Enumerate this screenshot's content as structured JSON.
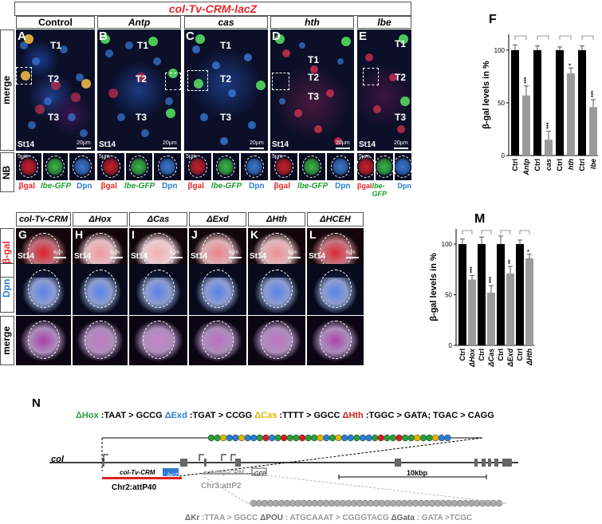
{
  "top": {
    "title": "col-Tv-CRM-lacZ",
    "columns": [
      "Control",
      "Antp",
      "cas",
      "hth",
      "lbe"
    ],
    "panel_letters": [
      "A",
      "B",
      "C",
      "D",
      "E"
    ],
    "row_label_merge": "merge",
    "row_label_nb": "NB",
    "segments": [
      "T1",
      "T2",
      "T3"
    ],
    "stage": "St14",
    "scale_20": "20µm",
    "scale_5": "5µm",
    "nb_labels": {
      "bgal": "βgal",
      "lbe": "lbe-GFP",
      "dpn": "Dpn"
    }
  },
  "bottom": {
    "columns": [
      "col-Tv-CRM",
      "ΔHox",
      "ΔCas",
      "ΔExd",
      "ΔHth",
      "ΔHCEH"
    ],
    "panel_letters": [
      "G",
      "H",
      "I",
      "J",
      "K",
      "L"
    ],
    "row_labels": [
      "β-gal",
      "Dpn",
      "merge"
    ],
    "stage": "St14",
    "scale_6": "6µm"
  },
  "chart_F": {
    "letter": "F",
    "chart_data": {
      "type": "bar",
      "categories": [
        "Ctrl",
        "Antp",
        "Ctrl",
        "cas",
        "Ctrl",
        "hth",
        "Ctrl",
        "lbe"
      ],
      "values": [
        100,
        57,
        100,
        15,
        100,
        78,
        100,
        46
      ],
      "errors": [
        5,
        9,
        4,
        8,
        3,
        5,
        4,
        7
      ],
      "significance": [
        "",
        "***",
        "",
        "***",
        "",
        "*",
        "",
        "***"
      ],
      "bar_colors": [
        "#000000",
        "#9a9a9a",
        "#000000",
        "#9a9a9a",
        "#000000",
        "#9a9a9a",
        "#000000",
        "#9a9a9a"
      ],
      "ylabel": "β-gal levels in %",
      "yticks": [
        0,
        50,
        100
      ],
      "ylim": [
        0,
        115
      ]
    }
  },
  "chart_M": {
    "letter": "M",
    "chart_data": {
      "type": "bar",
      "categories": [
        "Ctrl",
        "ΔHox",
        "Ctrl",
        "ΔCas",
        "Ctrl",
        "ΔExd",
        "Ctrl",
        "ΔHth",
        "Ctrl",
        "ΔHCEH"
      ],
      "values": [
        100,
        65,
        100,
        52,
        100,
        71,
        100,
        86,
        100,
        52
      ],
      "errors": [
        5,
        4,
        7,
        7,
        8,
        7,
        4,
        4,
        3,
        7
      ],
      "significance": [
        "",
        "***",
        "",
        "***",
        "",
        "**",
        "",
        "*",
        "",
        "***"
      ],
      "bar_colors": [
        "#000000",
        "#9a9a9a",
        "#000000",
        "#9a9a9a",
        "#000000",
        "#9a9a9a",
        "#000000",
        "#9a9a9a",
        "#000000",
        "#9a9a9a"
      ],
      "ylabel": "β-gal levels in %",
      "yticks": [
        0,
        50,
        100
      ],
      "ylim": [
        0,
        115
      ]
    }
  },
  "panel_N": {
    "letter": "N",
    "top_legend": [
      {
        "name": "ΔHox",
        "rule": " :TAAT > GCCG",
        "color": "#2a9d3a"
      },
      {
        "name": "ΔExd",
        "rule": " :TGAT > CCGG",
        "color": "#2a7fd0"
      },
      {
        "name": "ΔCas",
        "rule": " :TTTT > GGCC",
        "color": "#e0b400"
      },
      {
        "name": "ΔHth",
        "rule": " :TGGC > GATA; TGAC > CAGG",
        "color": "#d42020"
      }
    ],
    "gene": "col",
    "construct1": "col-Tv-CRM",
    "reporter1": "lacZ",
    "site1": "Chr2:attP40",
    "construct2": "col-dAp-CRM",
    "reporter2": "GFP",
    "site2": "Chr3:attP2",
    "scale": "10kbp",
    "bottom_legend": [
      {
        "name": "ΔKr",
        "rule": " :TTAA > GGCC"
      },
      {
        "name": "ΔPOU",
        "rule": " : ATGCAAAT > CGGGTACG"
      },
      {
        "name": "ΔGata",
        "rule": " : GATA >TCGC"
      }
    ]
  }
}
